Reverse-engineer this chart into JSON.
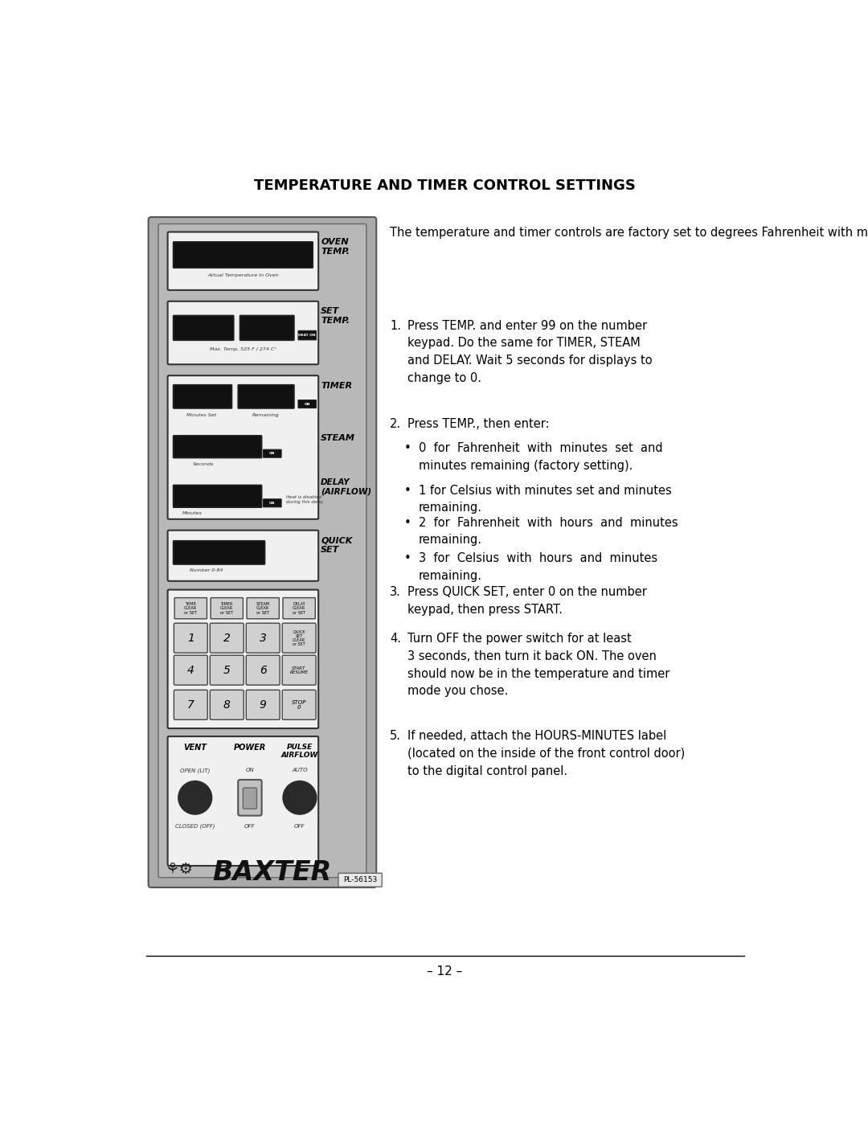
{
  "title": "TEMPERATURE AND TIMER CONTROL SETTINGS",
  "page_number": "– 12 –",
  "bg_color": "#ffffff",
  "panel_bg": "#aaaaaa",
  "panel_inner_bg": "#c8c8c8",
  "intro_text": "The temperature and timer controls are factory set to degrees Fahrenheit with minutes set and minutes remaining. If desired, the controls can be changed to degrees Celsius and/or hours and minutes remaining as follows:",
  "step1": "Press TEMP. and enter 99 on the number\nkeypad. Do the same for TIMER, STEAM\nand DELAY. Wait 5 seconds for displays to\nchange to 0.",
  "step2": "Press TEMP., then enter:",
  "step3": "Press QUICK SET, enter 0 on the number\nkeypad, then press START.",
  "step4": "Turn OFF the power switch for at least\n3 seconds, then turn it back ON. The oven\nshould now be in the temperature and timer\nmode you chose.",
  "step5": "If needed, attach the HOURS-MINUTES label\n(located on the inside of the front control door)\nto the digital control panel.",
  "bullet1": "0  for  Fahrenheit  with  minutes  set  and\nminutes remaining (factory setting).",
  "bullet2": "1 for Celsius with minutes set and minutes\nremaining.",
  "bullet3": "2  for  Fahrenheit  with  hours  and  minutes\nremaining.",
  "bullet4": "3  for  Celsius  with  hours  and  minutes\nremaining.",
  "part_number": "PL-56153"
}
